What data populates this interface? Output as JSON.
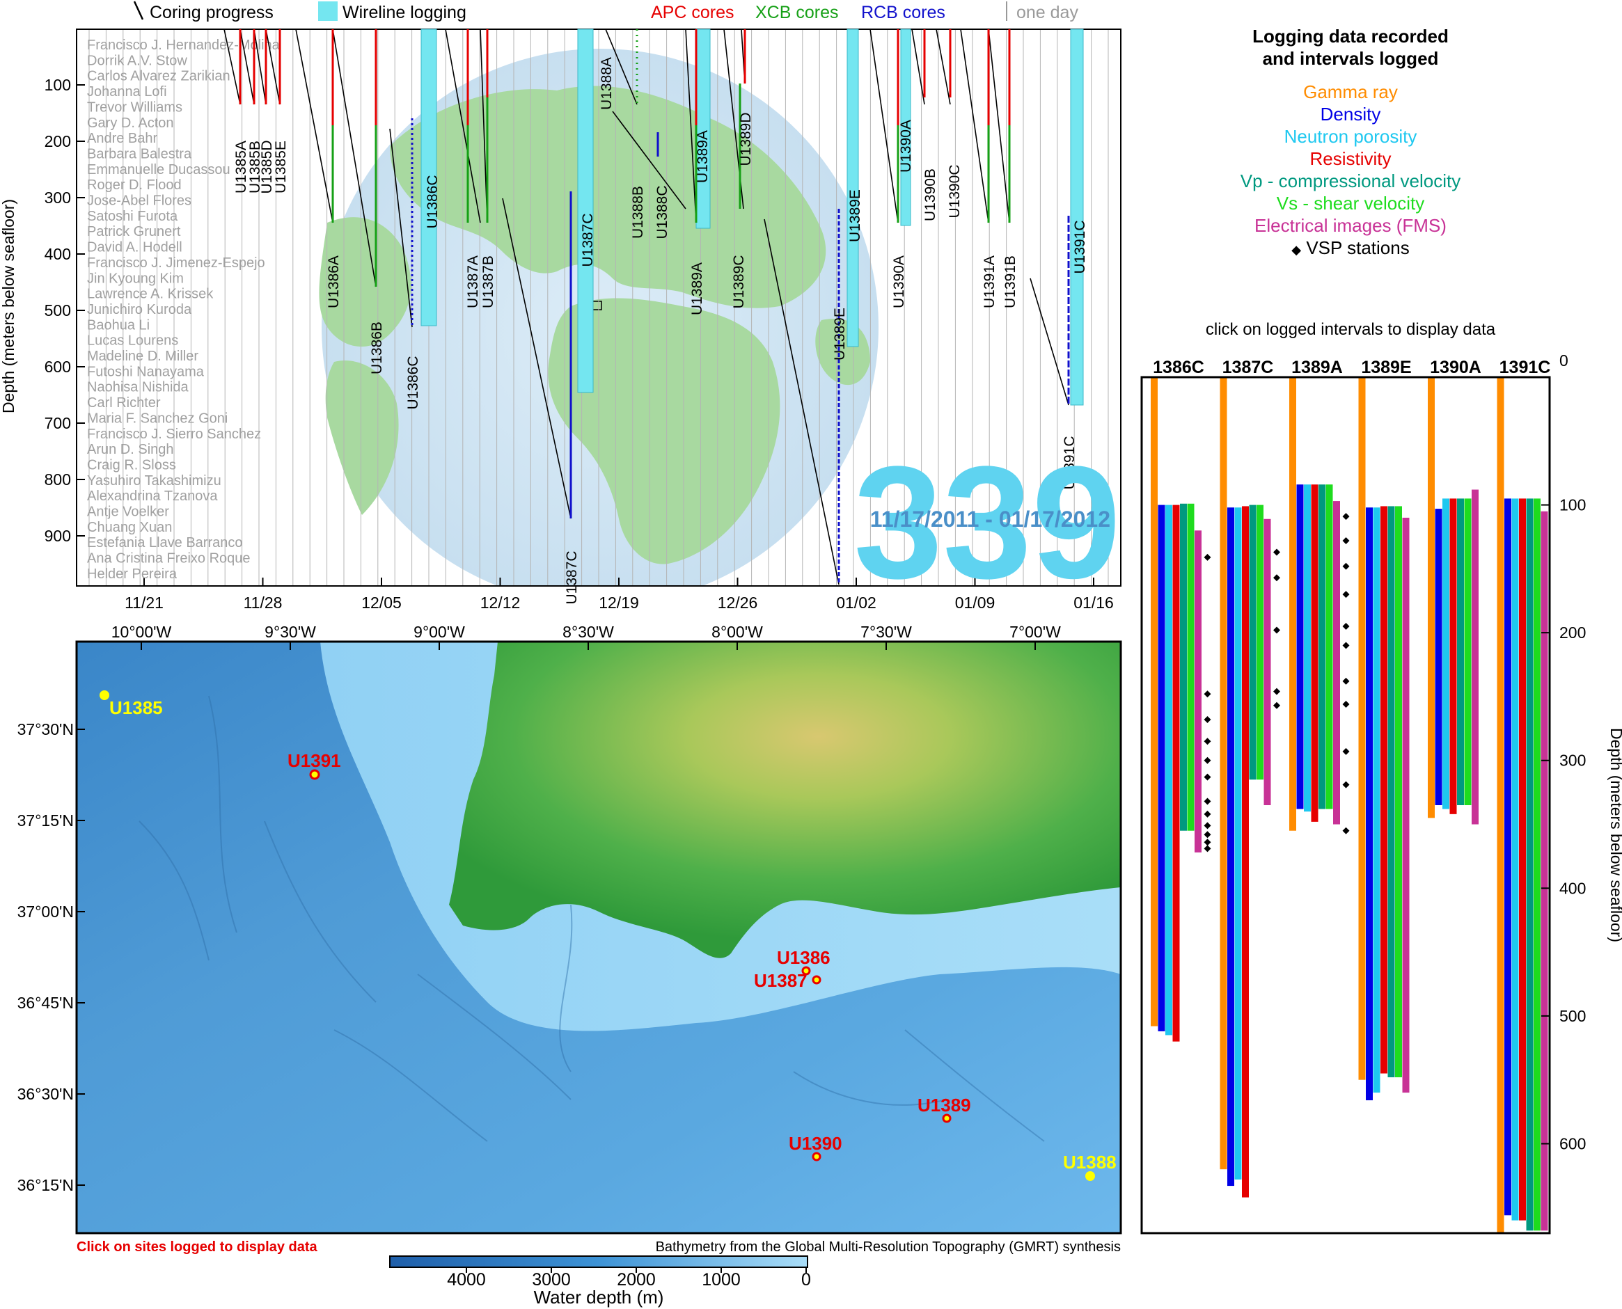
{
  "expedition": {
    "number": "339",
    "dates": "11/17/2011 - 01/17/2012"
  },
  "timeline": {
    "legend": {
      "coring": "Coring progress",
      "wireline": "Wireline logging",
      "apc": "APC cores",
      "xcb": "XCB cores",
      "rcb": "RCB cores",
      "oneday": "one day"
    },
    "y_label": "Depth (meters below seafloor)",
    "y_ticks": [
      "100",
      "200",
      "300",
      "400",
      "500",
      "600",
      "700",
      "800",
      "900"
    ],
    "x_ticks": [
      "11/21",
      "11/28",
      "12/05",
      "12/12",
      "12/19",
      "12/26",
      "01/02",
      "01/09",
      "01/16"
    ],
    "scientists": [
      "Francisco J. Hernandez-Molina",
      "Dorrik A.V. Stow",
      "Carlos Alvarez Zarikian",
      "Johanna Lofi",
      "Trevor Williams",
      "Gary D. Acton",
      "Andre Bahr",
      "Barbara Balestra",
      "Emmanuelle Ducassou",
      "Roger D. Flood",
      "Jose-Abel Flores",
      "Satoshi Furota",
      "Patrick Grunert",
      "David A. Hodell",
      "Francisco J. Jimenez-Espejo",
      "Jin Kyoung Kim",
      "Lawrence A. Krissek",
      "Junichiro Kuroda",
      "Baohua Li",
      "Lucas Lourens",
      "Madeline D. Miller",
      "Futoshi Nanayama",
      "Naohisa Nishida",
      "Carl Richter",
      "Maria F. Sanchez Goni",
      "Francisco J. Sierro Sanchez",
      "Arun D. Singh",
      "Craig R. Sloss",
      "Yasuhiro Takashimizu",
      "Alexandrina Tzanova",
      "Antje Voelker",
      "Chuang Xuan",
      "Estefania Llave Barranco",
      "Ana Cristina Freixo Roque",
      "Helder Pereira"
    ],
    "holes": [
      "U1385A",
      "U1385B",
      "U1385D",
      "U1385E",
      "U1386A",
      "U1386B",
      "U1386C",
      "U1386C",
      "U1387A",
      "U1387B",
      "U1387C",
      "U1387C",
      "U1388A",
      "U1388B",
      "U1388C",
      "U1389A",
      "U1389A",
      "U1389D",
      "U1389C",
      "U1389E",
      "U1389E",
      "U1390A",
      "U1390A",
      "U1390B",
      "U1390C",
      "U1391A",
      "U1391B",
      "U1391C",
      "U1391C"
    ]
  },
  "logging_panel": {
    "title": "Logging data recorded\nand intervals logged",
    "tools": [
      {
        "name": "Gamma ray",
        "color": "#ff8c00"
      },
      {
        "name": "Density",
        "color": "#0000e6"
      },
      {
        "name": "Neutron porosity",
        "color": "#1ec8f0"
      },
      {
        "name": "Resistivity",
        "color": "#e60000"
      },
      {
        "name": "Vp - compressional velocity",
        "color": "#009980"
      },
      {
        "name": "Vs - shear velocity",
        "color": "#1edc1e"
      },
      {
        "name": "Electrical images (FMS)",
        "color": "#c83296"
      },
      {
        "name": "VSP stations",
        "color": "#000000"
      }
    ],
    "vsp_symbol": "◆",
    "instruction": "click on logged intervals to display data",
    "y_label": "Depth (meters below seafloor)",
    "y_ticks": [
      "0",
      "100",
      "200",
      "300",
      "400",
      "500",
      "600"
    ]
  },
  "chart_data": {
    "type": "bar",
    "title": "Logging data recorded and intervals logged",
    "ylabel": "Depth (meters below seafloor)",
    "ylim": [
      0,
      670
    ],
    "categories": [
      "1386C",
      "1387C",
      "1389A",
      "1389E",
      "1390A",
      "1391C"
    ],
    "series": [
      {
        "name": "Gamma ray",
        "intervals": [
          [
            0,
            508
          ],
          [
            0,
            620
          ],
          [
            0,
            355
          ],
          [
            0,
            550
          ],
          [
            0,
            345
          ],
          [
            0,
            670
          ]
        ]
      },
      {
        "name": "Density",
        "intervals": [
          [
            100,
            512
          ],
          [
            102,
            633
          ],
          [
            84,
            338
          ],
          [
            102,
            566
          ],
          [
            103,
            335
          ],
          [
            95,
            656
          ]
        ]
      },
      {
        "name": "Neutron porosity",
        "intervals": [
          [
            100,
            515
          ],
          [
            102,
            628
          ],
          [
            84,
            340
          ],
          [
            102,
            560
          ],
          [
            95,
            338
          ],
          [
            95,
            660
          ]
        ]
      },
      {
        "name": "Resistivity",
        "intervals": [
          [
            100,
            520
          ],
          [
            101,
            642
          ],
          [
            84,
            348
          ],
          [
            101,
            545
          ],
          [
            95,
            342
          ],
          [
            95,
            660
          ]
        ]
      },
      {
        "name": "Vp - compressional velocity",
        "intervals": [
          [
            99,
            355
          ],
          [
            100,
            315
          ],
          [
            84,
            338
          ],
          [
            101,
            548
          ],
          [
            95,
            335
          ],
          [
            95,
            668
          ]
        ]
      },
      {
        "name": "Vs - shear velocity",
        "intervals": [
          [
            99,
            355
          ],
          [
            100,
            315
          ],
          [
            84,
            338
          ],
          [
            101,
            548
          ],
          [
            95,
            335
          ],
          [
            95,
            668
          ]
        ]
      },
      {
        "name": "Electrical images (FMS)",
        "intervals": [
          [
            120,
            372
          ],
          [
            111,
            335
          ],
          [
            97,
            350
          ],
          [
            110,
            560
          ],
          [
            88,
            350
          ],
          [
            105,
            668
          ]
        ]
      }
    ],
    "vsp_stations": {
      "1386C": [
        141,
        248,
        268,
        285,
        300,
        313,
        332,
        342,
        351,
        358,
        364,
        369
      ],
      "1387C": [
        137,
        157,
        198,
        246,
        257
      ],
      "1389A": [
        109,
        128,
        148,
        170,
        195,
        210,
        238,
        256,
        293,
        319,
        355
      ],
      "1389E": [],
      "1390A": [],
      "1391C": []
    }
  },
  "map": {
    "lon_labels": [
      "10°00'W",
      "9°30'W",
      "9°00'W",
      "8°30'W",
      "8°00'W",
      "7°30'W",
      "7°00'W"
    ],
    "lat_labels": [
      "37°30'N",
      "37°15'N",
      "37°00'N",
      "36°45'N",
      "36°30'N",
      "36°15'N"
    ],
    "sites": [
      {
        "name": "U1385",
        "color": "#ffff00"
      },
      {
        "name": "U1391",
        "color": "#e60000"
      },
      {
        "name": "U1386",
        "color": "#e60000"
      },
      {
        "name": "U1387",
        "color": "#e60000"
      },
      {
        "name": "U1389",
        "color": "#e60000"
      },
      {
        "name": "U1390",
        "color": "#e60000"
      },
      {
        "name": "U1388",
        "color": "#ffff00"
      }
    ],
    "click_note": "Click on sites logged to display data",
    "credit": "Bathymetry from the Global Multi-Resolution Topography (GMRT) synthesis",
    "colorbar": {
      "ticks": [
        "4000",
        "3000",
        "2000",
        "1000",
        "0"
      ],
      "label": "Water depth (m)"
    }
  }
}
